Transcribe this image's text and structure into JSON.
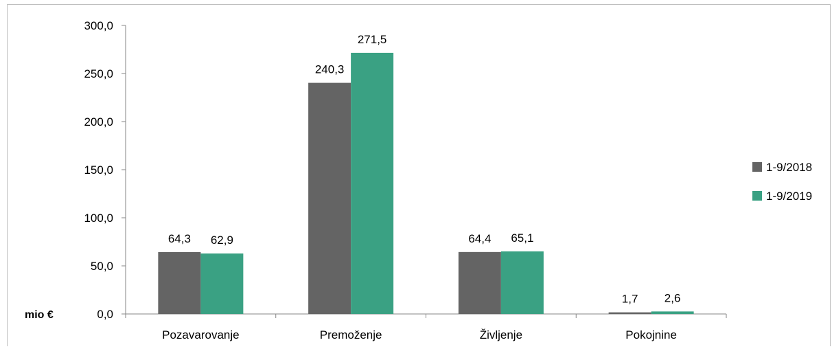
{
  "chart_data": {
    "type": "bar",
    "categories": [
      "Pozavarovanje",
      "Premoženje",
      "Življenje",
      "Pokojnine"
    ],
    "series": [
      {
        "name": "1-9/2018",
        "values": [
          64.3,
          240.3,
          64.4,
          1.7
        ],
        "color": "#646464",
        "labels": [
          "64,3",
          "240,3",
          "64,4",
          "1,7"
        ]
      },
      {
        "name": "1-9/2019",
        "values": [
          62.9,
          271.5,
          65.1,
          2.6
        ],
        "color": "#3aa183",
        "labels": [
          "62,9",
          "271,5",
          "65,1",
          "2,6"
        ]
      }
    ],
    "yticks": [
      "0,0",
      "50,0",
      "100,0",
      "150,0",
      "200,0",
      "250,0",
      "300,0"
    ],
    "ylim": [
      0,
      300
    ],
    "ylabel": "mio €",
    "xlabel": "",
    "title": "",
    "legend_position": "right",
    "grid": false
  }
}
